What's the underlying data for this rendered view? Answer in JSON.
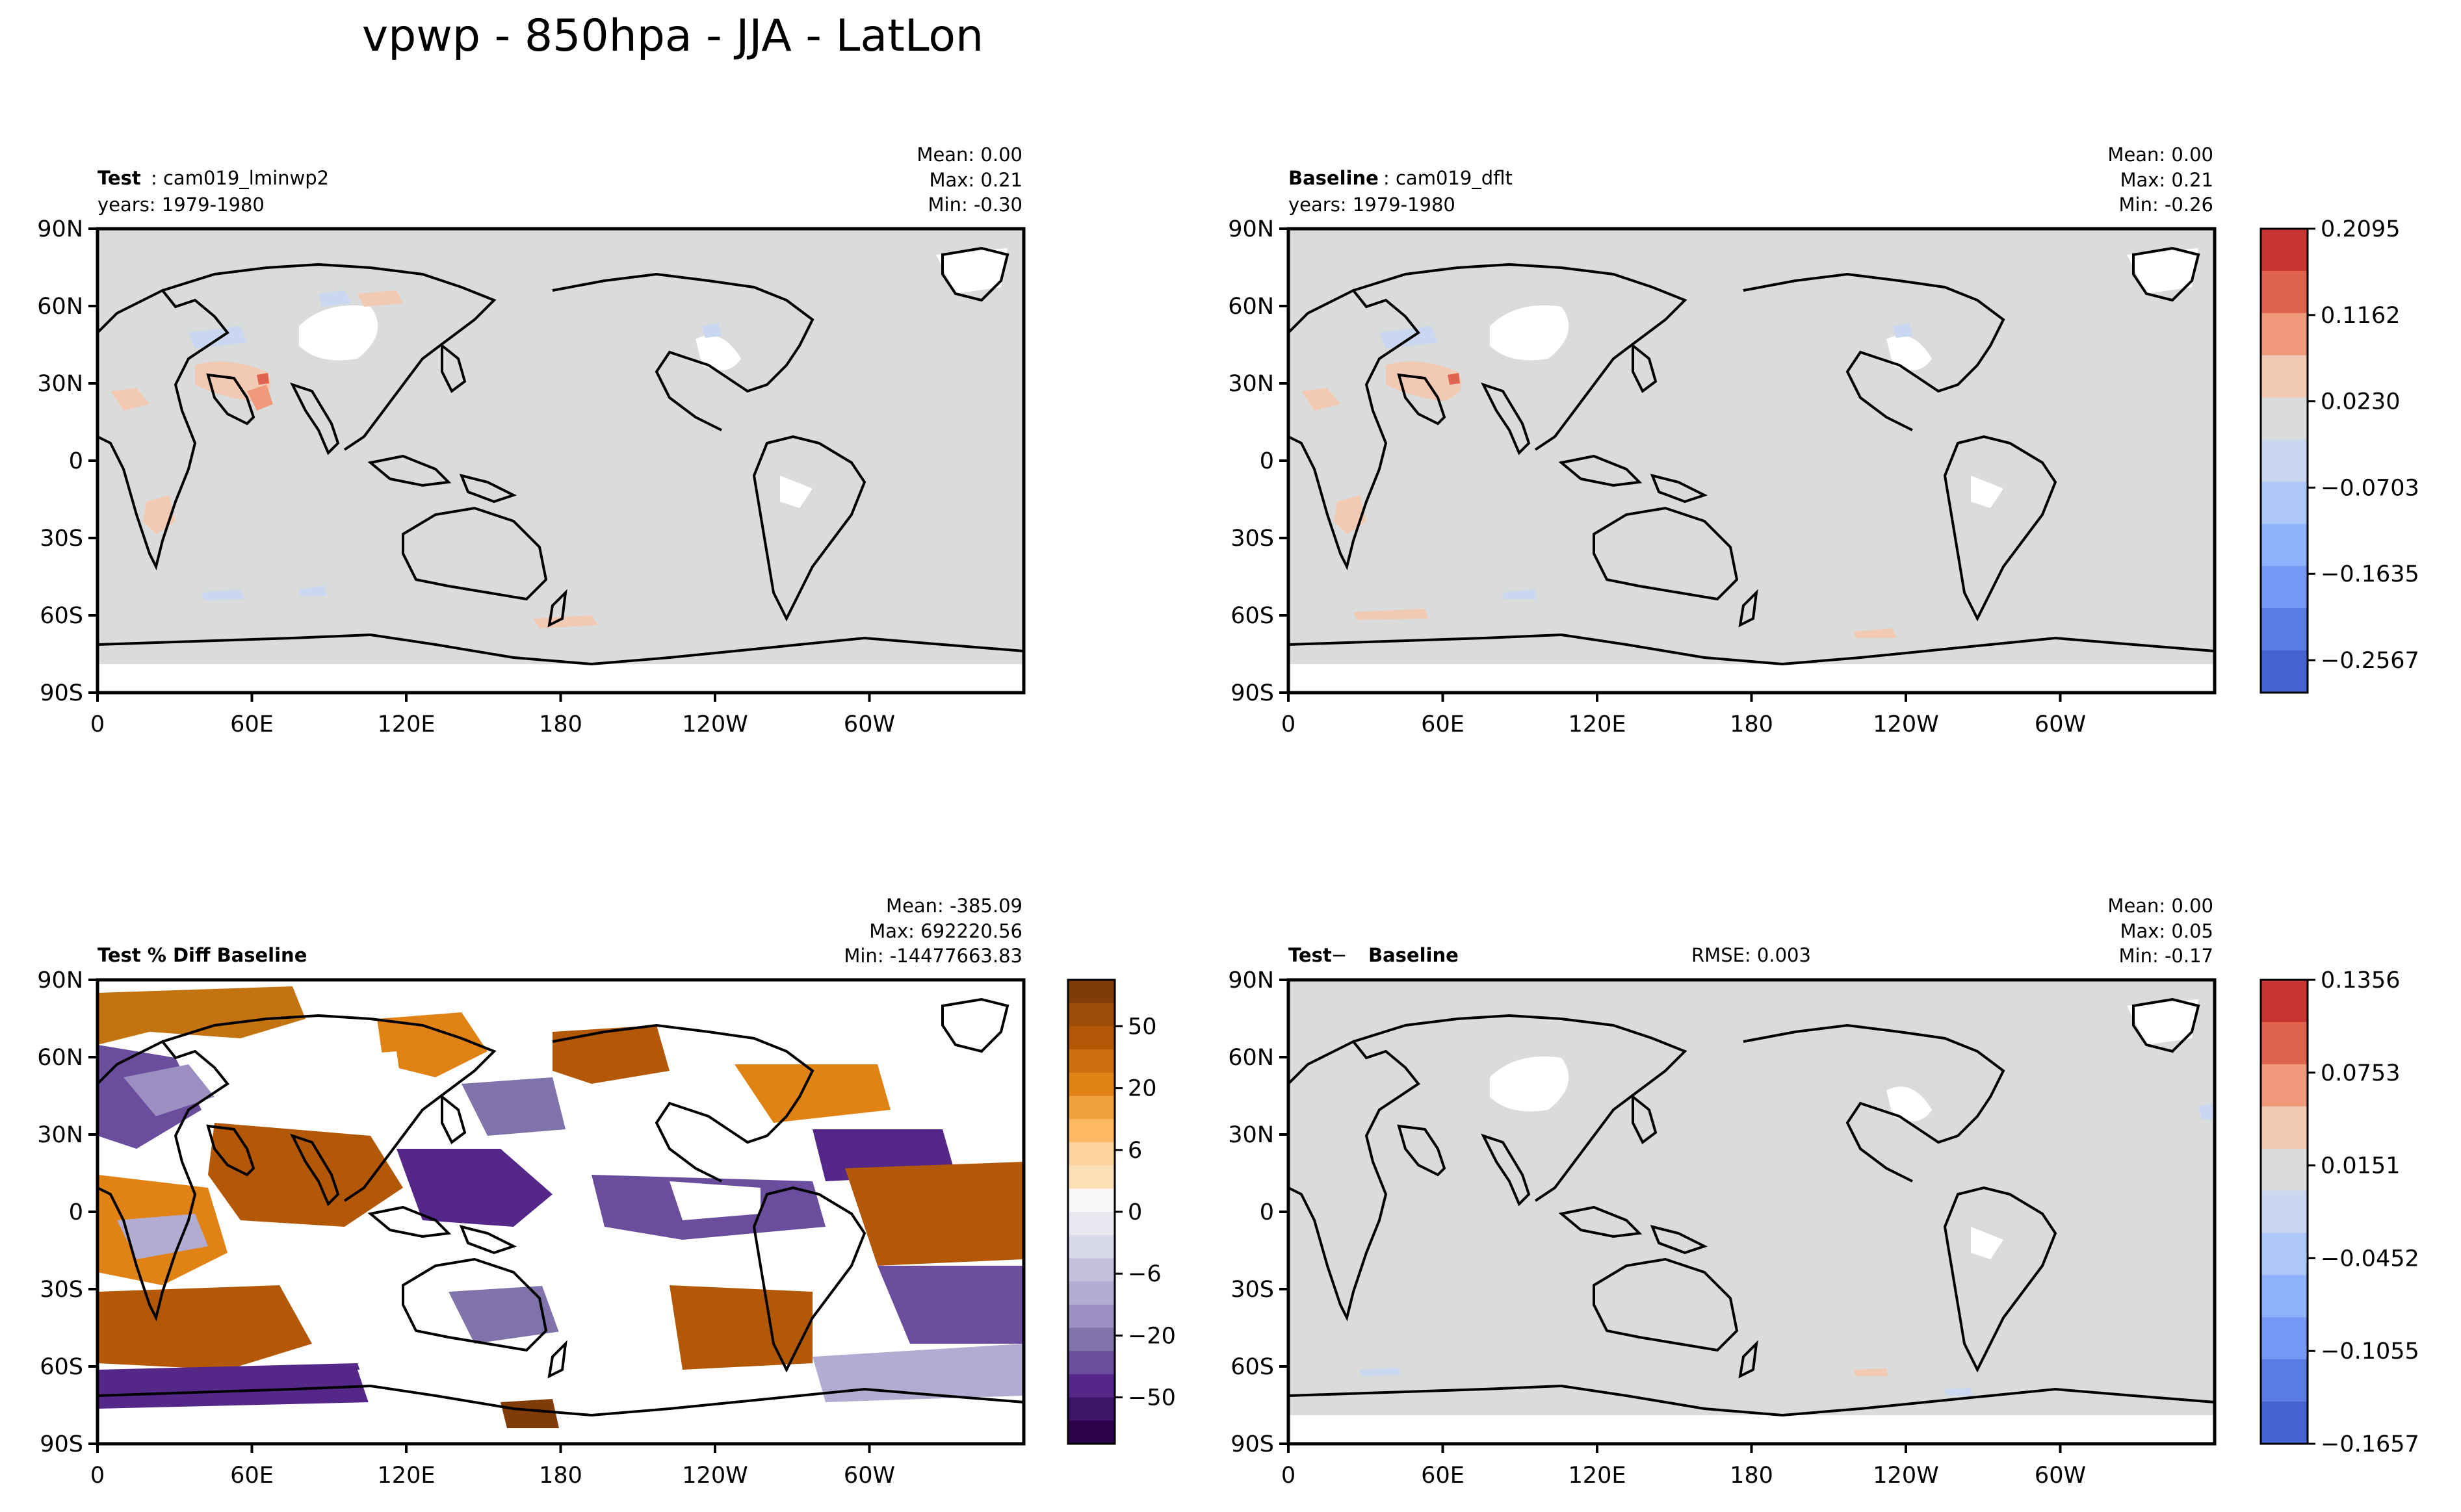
{
  "figure_title": "vpwp - 850hpa - JJA - LatLon",
  "chart_data": [
    {
      "type": "heatmap",
      "panel": "test",
      "label_bold": "Test",
      "label_rest": ": cam019_lminwp2",
      "years": "years: 1979-1980",
      "stats": [
        "Mean:  0.00",
        "Max:  0.21",
        "Min: -0.30"
      ],
      "lat_ticks": [
        "90N",
        "60N",
        "30N",
        "0",
        "30S",
        "60S",
        "90S"
      ],
      "lon_ticks": [
        "0",
        "60E",
        "120E",
        "180",
        "120W",
        "60W"
      ],
      "lat_range": [
        -90,
        90
      ],
      "lon_range": [
        0,
        360
      ]
    },
    {
      "type": "heatmap",
      "panel": "baseline",
      "label_bold": "Baseline",
      "label_rest": ": cam019_dflt",
      "years": "years: 1979-1980",
      "stats": [
        "Mean:  0.00",
        "Max:  0.21",
        "Min: -0.26"
      ],
      "lat_ticks": [
        "90N",
        "60N",
        "30N",
        "0",
        "30S",
        "60S",
        "90S"
      ],
      "lon_ticks": [
        "0",
        "60E",
        "120E",
        "180",
        "120W",
        "60W"
      ],
      "colorbar": {
        "ticks": [
          "0.2095",
          "0.1162",
          "0.0230",
          "−0.0703",
          "−0.1635",
          "−0.2567"
        ],
        "colors": [
          "#c83432",
          "#df634e",
          "#f09a7b",
          "#f2c9b3",
          "#dadcdc",
          "#c9d8f0",
          "#adc7f8",
          "#8fb1fb",
          "#7597f5",
          "#5a7be3",
          "#4563d1"
        ]
      }
    },
    {
      "type": "heatmap",
      "panel": "pct_diff",
      "label_bold": "Test % Diff Baseline",
      "stats": [
        "Mean: -385.09",
        "Max: 692220.56",
        "Min: -14477663.83"
      ],
      "lat_ticks": [
        "90N",
        "60N",
        "30N",
        "0",
        "30S",
        "60S",
        "90S"
      ],
      "lon_ticks": [
        "0",
        "60E",
        "120E",
        "180",
        "120W",
        "60W"
      ],
      "colorbar": {
        "ticks": [
          "50",
          "20",
          "6",
          "0",
          "−6",
          "−20",
          "−50"
        ],
        "colors": [
          "#7f3b08",
          "#9c4d08",
          "#b35806",
          "#cd6e0f",
          "#e08214",
          "#ef9f3b",
          "#fdb863",
          "#fdd3a0",
          "#fee0b6",
          "#f7f7f7",
          "#e9e8f0",
          "#d8daeb",
          "#c3c0dc",
          "#b2abd2",
          "#9b8fc2",
          "#8073ac",
          "#6a4d9c",
          "#542788",
          "#3d1468",
          "#2d004b"
        ]
      }
    },
    {
      "type": "heatmap",
      "panel": "difference",
      "label_bold": "Test",
      "label_mid": " − ",
      "label_bold2": "Baseline",
      "rmse": "RMSE: 0.003",
      "stats": [
        "Mean:  0.00",
        "Max:  0.05",
        "Min: -0.17"
      ],
      "lat_ticks": [
        "90N",
        "60N",
        "30N",
        "0",
        "30S",
        "60S",
        "90S"
      ],
      "lon_ticks": [
        "0",
        "60E",
        "120E",
        "180",
        "120W",
        "60W"
      ],
      "colorbar": {
        "ticks": [
          "0.1356",
          "0.0753",
          "0.0151",
          "−0.0452",
          "−0.1055",
          "−0.1657"
        ],
        "colors": [
          "#c83432",
          "#df634e",
          "#f09a7b",
          "#f2c9b3",
          "#dadcdc",
          "#c9d8f0",
          "#adc7f8",
          "#8fb1fb",
          "#7597f5",
          "#5a7be3",
          "#4563d1"
        ]
      }
    }
  ]
}
